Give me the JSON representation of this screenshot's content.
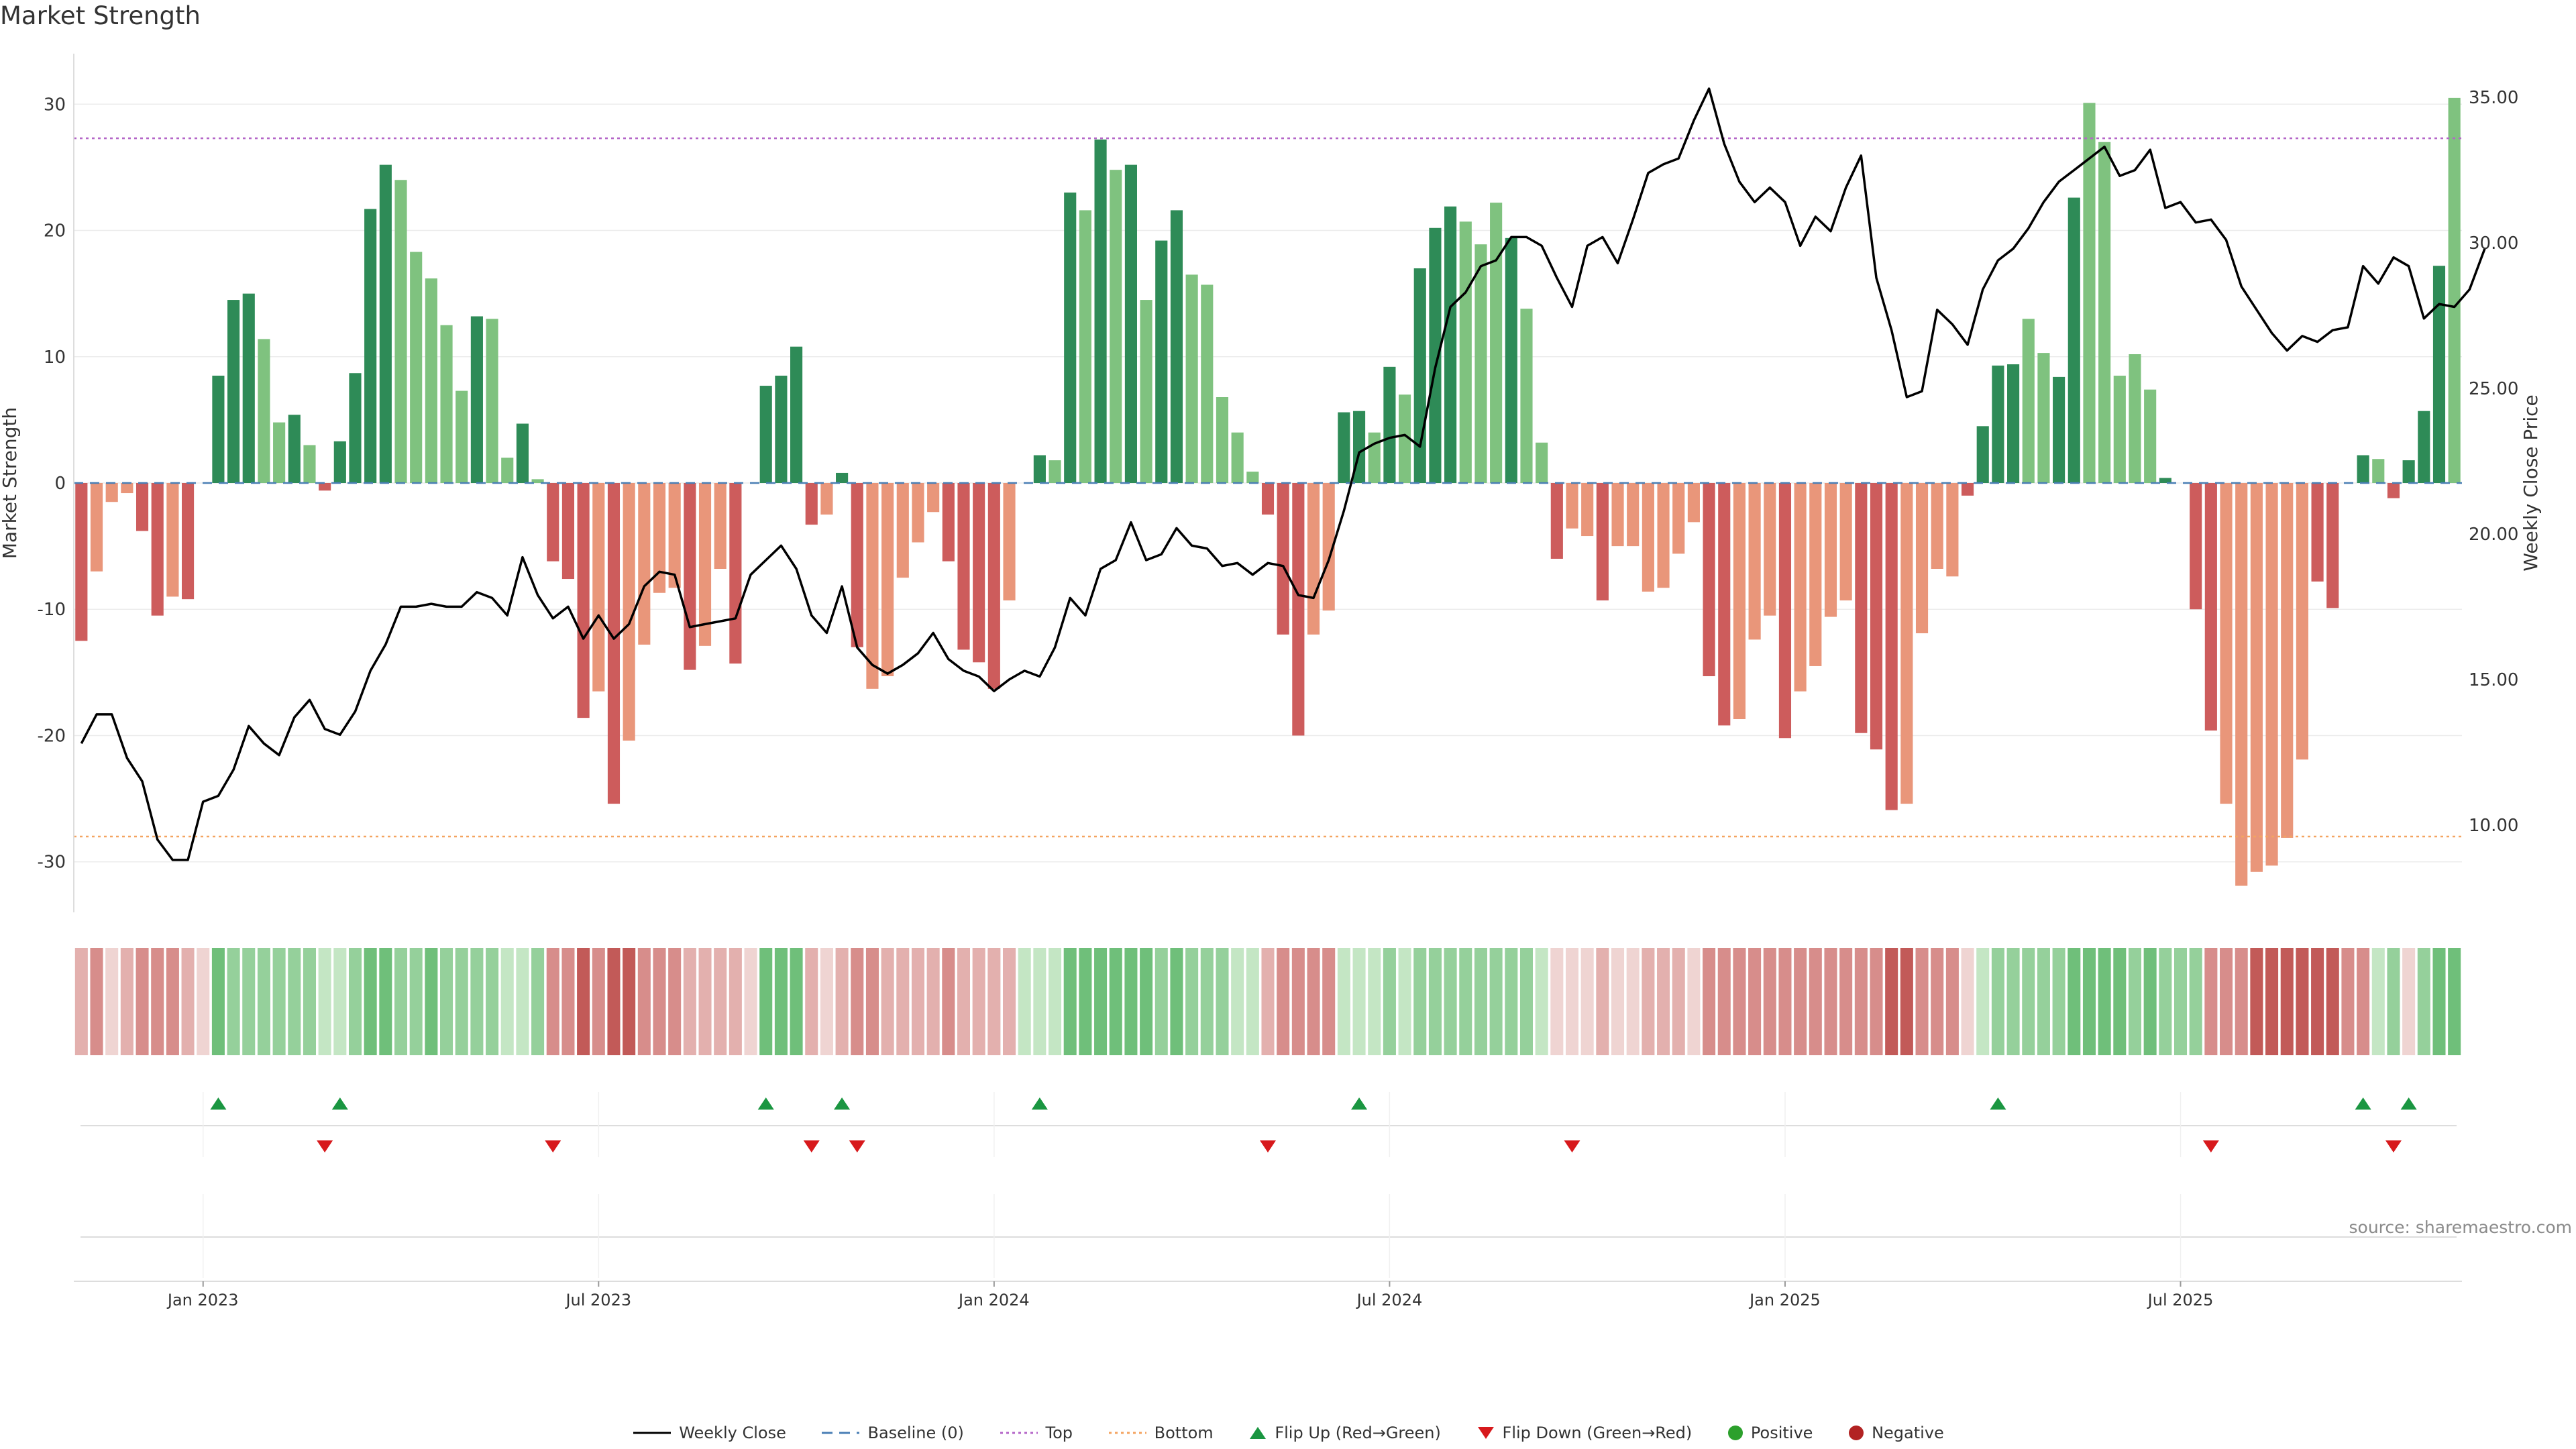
{
  "title": "Market Strength",
  "source": "source: sharemaestro.com",
  "colors": {
    "dark_green": "#2e8b57",
    "light_green": "#7fc27f",
    "dark_red": "#cd5c5c",
    "light_red": "#e9967a",
    "close_line": "#000000",
    "baseline": "#4a7fb5",
    "top_line": "#b466c8",
    "bottom_line": "#f4a460",
    "flip_up": "#1a9641",
    "flip_down": "#d7191c",
    "positive": "#2ca02c",
    "negative": "#b22222"
  },
  "chart_data": {
    "type": "bar",
    "title": "Market Strength",
    "ylabel": "Market Strength",
    "y2label": "Weekly Close Price",
    "ylim": [
      -34,
      34
    ],
    "y2lim": [
      7.0,
      36.5
    ],
    "yticks": [
      -30,
      -20,
      -10,
      0,
      10,
      20,
      30
    ],
    "y2ticks": [
      "10.00",
      "15.00",
      "20.00",
      "25.00",
      "30.00",
      "35.00"
    ],
    "x_tick_labels": [
      "Jan 2023",
      "Jul 2023",
      "Jan 2024",
      "Jul 2024",
      "Jan 2025",
      "Jul 2025"
    ],
    "x_tick_week_index": [
      8,
      34,
      60,
      86,
      112,
      138
    ],
    "top_level": 27.3,
    "bottom_level": -28.0,
    "strength": [
      -12.5,
      -7,
      -1.5,
      -0.8,
      -3.8,
      -10.5,
      -9,
      -9.2,
      0,
      8.5,
      14.5,
      15,
      11.4,
      4.8,
      5.4,
      3,
      -0.6,
      3.3,
      8.7,
      21.7,
      25.2,
      24,
      18.3,
      16.2,
      12.5,
      7.3,
      13.2,
      13,
      2,
      4.7,
      0.3,
      -6.2,
      -7.6,
      -18.6,
      -16.5,
      -25.4,
      -20.4,
      -12.8,
      -8.7,
      -8.3,
      -14.8,
      -12.9,
      -6.8,
      -14.3,
      0,
      7.7,
      8.5,
      10.8,
      -3.3,
      -2.5,
      0.8,
      -13,
      -16.3,
      -15.3,
      -7.5,
      -4.7,
      -2.3,
      -6.2,
      -13.2,
      -14.2,
      -16.3,
      -9.3,
      0,
      2.2,
      1.8,
      23,
      21.6,
      27.2,
      24.8,
      25.2,
      14.5,
      19.2,
      21.6,
      16.5,
      15.7,
      6.8,
      4,
      0.9,
      -2.5,
      -12,
      -20,
      -12,
      -10.1,
      5.6,
      5.7,
      4,
      9.2,
      7,
      17,
      20.2,
      21.9,
      20.7,
      18.9,
      22.2,
      19.4,
      13.8,
      3.2,
      -6,
      -3.6,
      -4.2,
      -9.3,
      -5,
      -5,
      -8.6,
      -8.3,
      -5.6,
      -3.1,
      -15.3,
      -19.2,
      -18.7,
      -12.4,
      -10.5,
      -20.2,
      -16.5,
      -14.5,
      -10.6,
      -9.3,
      -19.8,
      -21.1,
      -25.9,
      -25.4,
      -11.9,
      -6.8,
      -7.4,
      -1,
      4.5,
      9.3,
      9.4,
      13,
      10.3,
      8.4,
      22.6,
      30.1,
      27,
      8.5,
      10.2,
      7.4,
      0.4,
      0,
      -10,
      -19.6,
      -25.4,
      -31.9,
      -30.8,
      -30.3,
      -28.1,
      -21.9,
      -7.8,
      -9.9,
      0,
      2.2,
      1.9,
      -1.2,
      1.8,
      5.7,
      17.2,
      30.5
    ],
    "shade": [
      "d",
      "l",
      "l",
      "l",
      "d",
      "d",
      "l",
      "d",
      "d",
      "d",
      "d",
      "d",
      "l",
      "l",
      "d",
      "l",
      "d",
      "d",
      "d",
      "d",
      "d",
      "l",
      "l",
      "l",
      "l",
      "l",
      "d",
      "l",
      "l",
      "d",
      "l",
      "d",
      "d",
      "d",
      "l",
      "d",
      "l",
      "l",
      "l",
      "l",
      "d",
      "l",
      "l",
      "d",
      "d",
      "d",
      "d",
      "d",
      "d",
      "l",
      "d",
      "d",
      "l",
      "l",
      "l",
      "l",
      "l",
      "d",
      "d",
      "d",
      "d",
      "l",
      "d",
      "d",
      "l",
      "d",
      "l",
      "d",
      "l",
      "d",
      "l",
      "d",
      "d",
      "l",
      "l",
      "l",
      "l",
      "l",
      "d",
      "d",
      "d",
      "l",
      "l",
      "d",
      "d",
      "l",
      "d",
      "l",
      "d",
      "d",
      "d",
      "l",
      "l",
      "l",
      "d",
      "l",
      "l",
      "d",
      "l",
      "l",
      "d",
      "l",
      "l",
      "l",
      "l",
      "l",
      "l",
      "d",
      "d",
      "l",
      "l",
      "l",
      "d",
      "l",
      "l",
      "l",
      "l",
      "d",
      "d",
      "d",
      "l",
      "l",
      "l",
      "l",
      "d",
      "d",
      "d",
      "d",
      "l",
      "l",
      "d",
      "d",
      "l",
      "l",
      "l",
      "l",
      "l",
      "d",
      "d",
      "d",
      "d",
      "l",
      "l",
      "l",
      "l",
      "l",
      "l",
      "d",
      "d",
      "l",
      "d",
      "l",
      "d",
      "d",
      "d",
      "d"
    ],
    "weekly_close": [
      12.8,
      13.8,
      13.8,
      12.3,
      11.5,
      9.5,
      8.8,
      8.8,
      10.8,
      11,
      11.9,
      13.4,
      12.8,
      12.4,
      13.7,
      14.3,
      13.3,
      13.1,
      13.9,
      15.3,
      16.2,
      17.5,
      17.5,
      17.6,
      17.5,
      17.5,
      18,
      17.8,
      17.2,
      19.2,
      17.9,
      17.1,
      17.5,
      16.4,
      17.2,
      16.4,
      16.9,
      18.2,
      18.7,
      18.6,
      16.8,
      16.9,
      17,
      17.1,
      18.6,
      19.1,
      19.6,
      18.8,
      17.2,
      16.6,
      18.2,
      16.1,
      15.5,
      15.2,
      15.5,
      15.9,
      16.6,
      15.7,
      15.3,
      15.1,
      14.6,
      15,
      15.3,
      15.1,
      16.1,
      17.8,
      17.2,
      18.8,
      19.1,
      20.4,
      19.1,
      19.3,
      20.2,
      19.6,
      19.5,
      18.9,
      19,
      18.6,
      19,
      18.9,
      17.9,
      17.8,
      19.1,
      20.8,
      22.8,
      23.1,
      23.3,
      23.4,
      23,
      25.7,
      27.8,
      28.3,
      29.2,
      29.4,
      30.2,
      30.2,
      29.9,
      28.8,
      27.8,
      29.9,
      30.2,
      29.3,
      30.8,
      32.4,
      32.7,
      32.9,
      34.2,
      35.3,
      33.4,
      32.1,
      31.4,
      31.9,
      31.4,
      29.9,
      30.9,
      30.4,
      31.9,
      33,
      28.8,
      27,
      24.7,
      24.9,
      27.7,
      27.2,
      26.5,
      28.4,
      29.4,
      29.8,
      30.5,
      31.4,
      32.1,
      32.5,
      32.9,
      33.3,
      32.3,
      32.5,
      33.2,
      31.2,
      31.4,
      30.7,
      30.8,
      30.1,
      28.5,
      27.7,
      26.9,
      26.3,
      26.8,
      26.6,
      27,
      27.1,
      29.2,
      28.6,
      29.5,
      29.2,
      27.4,
      27.9,
      27.8,
      28.4,
      29.8
    ],
    "intensity_strip": [
      "lr",
      "mr",
      "vr",
      "lr",
      "mr",
      "mr",
      "mr",
      "lr",
      "vr",
      "mg",
      "lg",
      "lg",
      "lg",
      "lg",
      "lg",
      "lg",
      "vg",
      "vg",
      "lg",
      "mg",
      "mg",
      "lg",
      "lg",
      "mg",
      "lg",
      "lg",
      "lg",
      "lg",
      "vg",
      "vg",
      "lg",
      "mr",
      "mr",
      "dr",
      "mr",
      "dr",
      "dr",
      "mr",
      "mr",
      "mr",
      "lr",
      "lr",
      "lr",
      "lr",
      "vr",
      "mg",
      "mg",
      "mg",
      "lr",
      "vr",
      "lr",
      "mr",
      "mr",
      "lr",
      "lr",
      "lr",
      "lr",
      "mr",
      "lr",
      "lr",
      "lr",
      "lr",
      "vg",
      "vg",
      "vg",
      "mg",
      "mg",
      "mg",
      "mg",
      "mg",
      "mg",
      "lg",
      "mg",
      "lg",
      "lg",
      "lg",
      "vg",
      "vg",
      "lr",
      "mr",
      "mr",
      "mr",
      "mr",
      "vg",
      "vg",
      "vg",
      "lg",
      "vg",
      "lg",
      "lg",
      "lg",
      "lg",
      "lg",
      "lg",
      "lg",
      "lg",
      "vg",
      "vr",
      "vr",
      "vr",
      "lr",
      "vr",
      "vr",
      "lr",
      "lr",
      "lr",
      "vr",
      "mr",
      "mr",
      "mr",
      "mr",
      "mr",
      "mr",
      "mr",
      "mr",
      "mr",
      "mr",
      "mr",
      "mr",
      "dr",
      "dr",
      "mr",
      "mr",
      "mr",
      "vr",
      "vg",
      "lg",
      "lg",
      "lg",
      "lg",
      "lg",
      "mg",
      "mg",
      "mg",
      "mg",
      "lg",
      "mg",
      "lg",
      "lg",
      "lg",
      "mr",
      "mr",
      "mr",
      "dr",
      "dr",
      "dr",
      "dr",
      "dr",
      "dr",
      "mr",
      "mr",
      "vg",
      "lg",
      "vr",
      "lg",
      "mg",
      "mg"
    ],
    "flip_up_weeks": [
      9,
      17,
      45,
      50,
      63,
      84,
      126,
      150,
      153
    ],
    "flip_down_weeks": [
      16,
      31,
      48,
      51,
      78,
      98,
      140,
      152
    ],
    "legend": [
      "Weekly Close",
      "Baseline (0)",
      "Top",
      "Bottom",
      "Flip Up (Red→Green)",
      "Flip Down (Green→Red)",
      "Positive",
      "Negative"
    ]
  }
}
